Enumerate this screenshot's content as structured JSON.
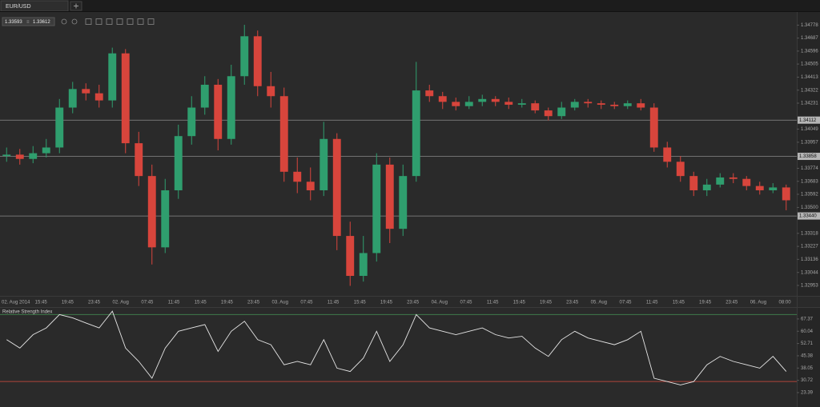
{
  "tab": "EUR/USD",
  "chart_data": [
    {
      "type": "candlestick",
      "bid": 1.33593,
      "ask": 1.33612,
      "ylim": [
        1.3288,
        1.3487
      ],
      "yticks": [
        1.34778,
        1.34687,
        1.34596,
        1.34505,
        1.34413,
        1.34322,
        1.34231,
        1.34049,
        1.33957,
        1.33774,
        1.33683,
        1.33592,
        {
          "value": 1.335,
          "label": "1.33500"
        },
        1.33318,
        1.33227,
        1.33136,
        1.33044,
        1.32953
      ],
      "levels": [
        1.34112,
        1.33858,
        {
          "value": 1.3344,
          "label": "1.33440"
        }
      ],
      "x_labels": [
        "02. Aug 2014",
        "15:45",
        "19:45",
        "23:45",
        "02. Aug",
        "07:45",
        "11:45",
        "15:45",
        "19:45",
        "23:45",
        "03. Aug",
        "07:45",
        "11:45",
        "15:45",
        "19:45",
        "23:45",
        "04. Aug",
        "07:45",
        "11:45",
        "15:45",
        "19:45",
        "23:45",
        "05. Aug",
        "07:45",
        "11:45",
        "15:45",
        "19:45",
        "23:45",
        "06. Aug",
        "08:00"
      ],
      "up_color": "#2f9e6e",
      "down_color": "#d8453c",
      "open": [
        1.3386,
        1.3387,
        1.3384,
        1.3388,
        1.3392,
        1.342,
        1.3433,
        1.343,
        1.3425,
        1.3458,
        1.3395,
        1.3372,
        1.3322,
        1.3362,
        1.34,
        1.342,
        1.3436,
        1.3398,
        1.3442,
        1.347,
        1.3435,
        1.3428,
        1.3375,
        1.3368,
        1.3362,
        1.3398,
        1.333,
        1.3302,
        1.3318,
        1.338,
        1.3335,
        1.3372,
        1.3432,
        1.3428,
        1.3424,
        1.3421,
        1.3424,
        1.3426,
        1.3424,
        1.3422,
        1.3423,
        1.3418,
        1.3414,
        1.342,
        1.3424,
        1.3423,
        1.3422,
        1.3421,
        1.3423,
        1.342,
        1.3392,
        1.3382,
        1.3372,
        1.3362,
        1.3366,
        1.3371,
        1.337,
        1.3365,
        1.3362,
        1.3364
      ],
      "high": [
        1.3392,
        1.3391,
        1.3393,
        1.3398,
        1.3426,
        1.3438,
        1.3437,
        1.3436,
        1.3462,
        1.3461,
        1.3403,
        1.338,
        1.337,
        1.3408,
        1.3428,
        1.3442,
        1.344,
        1.345,
        1.3478,
        1.3474,
        1.3445,
        1.3434,
        1.3385,
        1.3378,
        1.341,
        1.3402,
        1.334,
        1.333,
        1.3388,
        1.3385,
        1.338,
        1.3452,
        1.3436,
        1.3431,
        1.3427,
        1.3428,
        1.3429,
        1.3428,
        1.3427,
        1.3426,
        1.3425,
        1.342,
        1.3424,
        1.3426,
        1.3426,
        1.3425,
        1.3424,
        1.3425,
        1.3426,
        1.3423,
        1.3396,
        1.3386,
        1.3375,
        1.337,
        1.3374,
        1.3374,
        1.3372,
        1.3368,
        1.3367,
        1.3366
      ],
      "low": [
        1.3382,
        1.338,
        1.3381,
        1.3385,
        1.3388,
        1.3416,
        1.3425,
        1.342,
        1.342,
        1.3388,
        1.3365,
        1.331,
        1.3318,
        1.3356,
        1.3394,
        1.3415,
        1.339,
        1.3394,
        1.3436,
        1.3428,
        1.342,
        1.3368,
        1.336,
        1.3355,
        1.3358,
        1.332,
        1.3295,
        1.3298,
        1.3312,
        1.3325,
        1.333,
        1.3368,
        1.3424,
        1.3419,
        1.3418,
        1.3419,
        1.3421,
        1.3421,
        1.3419,
        1.342,
        1.3416,
        1.3411,
        1.3412,
        1.3418,
        1.342,
        1.3419,
        1.3419,
        1.3419,
        1.3418,
        1.3389,
        1.3378,
        1.3368,
        1.3358,
        1.3358,
        1.3364,
        1.3367,
        1.3362,
        1.3359,
        1.336,
        1.3348
      ],
      "close": [
        1.3387,
        1.3384,
        1.3388,
        1.3392,
        1.342,
        1.3433,
        1.343,
        1.3425,
        1.3458,
        1.3395,
        1.3372,
        1.3322,
        1.3362,
        1.34,
        1.342,
        1.3436,
        1.3398,
        1.3442,
        1.347,
        1.3435,
        1.3428,
        1.3375,
        1.3368,
        1.3362,
        1.3398,
        1.333,
        1.3302,
        1.3318,
        1.338,
        1.3335,
        1.3372,
        1.3432,
        1.3428,
        1.3424,
        1.3421,
        1.3424,
        1.3426,
        1.3424,
        1.3422,
        1.3423,
        1.3418,
        1.3414,
        1.342,
        1.3424,
        1.3423,
        1.3422,
        1.3421,
        1.3423,
        1.342,
        1.3392,
        1.3382,
        1.3372,
        1.3362,
        1.3366,
        1.3371,
        1.337,
        1.3365,
        1.3362,
        1.3364,
        1.3355
      ]
    },
    {
      "type": "line",
      "title": "Relative Strength Index",
      "color": "#e6e6e6",
      "ylim": [
        14.8,
        74.0
      ],
      "yticks": [
        67.37,
        60.04,
        52.71,
        45.38,
        38.05,
        30.72,
        23.39
      ],
      "levels": [
        70,
        30
      ],
      "level_colors": [
        "#3f7a4a",
        "#b0443a"
      ],
      "values": [
        55,
        50,
        58,
        62,
        70,
        68,
        65,
        62,
        72,
        50,
        42,
        32,
        50,
        60,
        62,
        64,
        48,
        60,
        66,
        55,
        52,
        40,
        42,
        40,
        55,
        38,
        36,
        44,
        60,
        42,
        52,
        70,
        62,
        60,
        58,
        60,
        62,
        58,
        56,
        57,
        50,
        45,
        55,
        60,
        56,
        54,
        52,
        55,
        60,
        32,
        30,
        28,
        30,
        40,
        45,
        42,
        40,
        38,
        45,
        36
      ]
    }
  ]
}
